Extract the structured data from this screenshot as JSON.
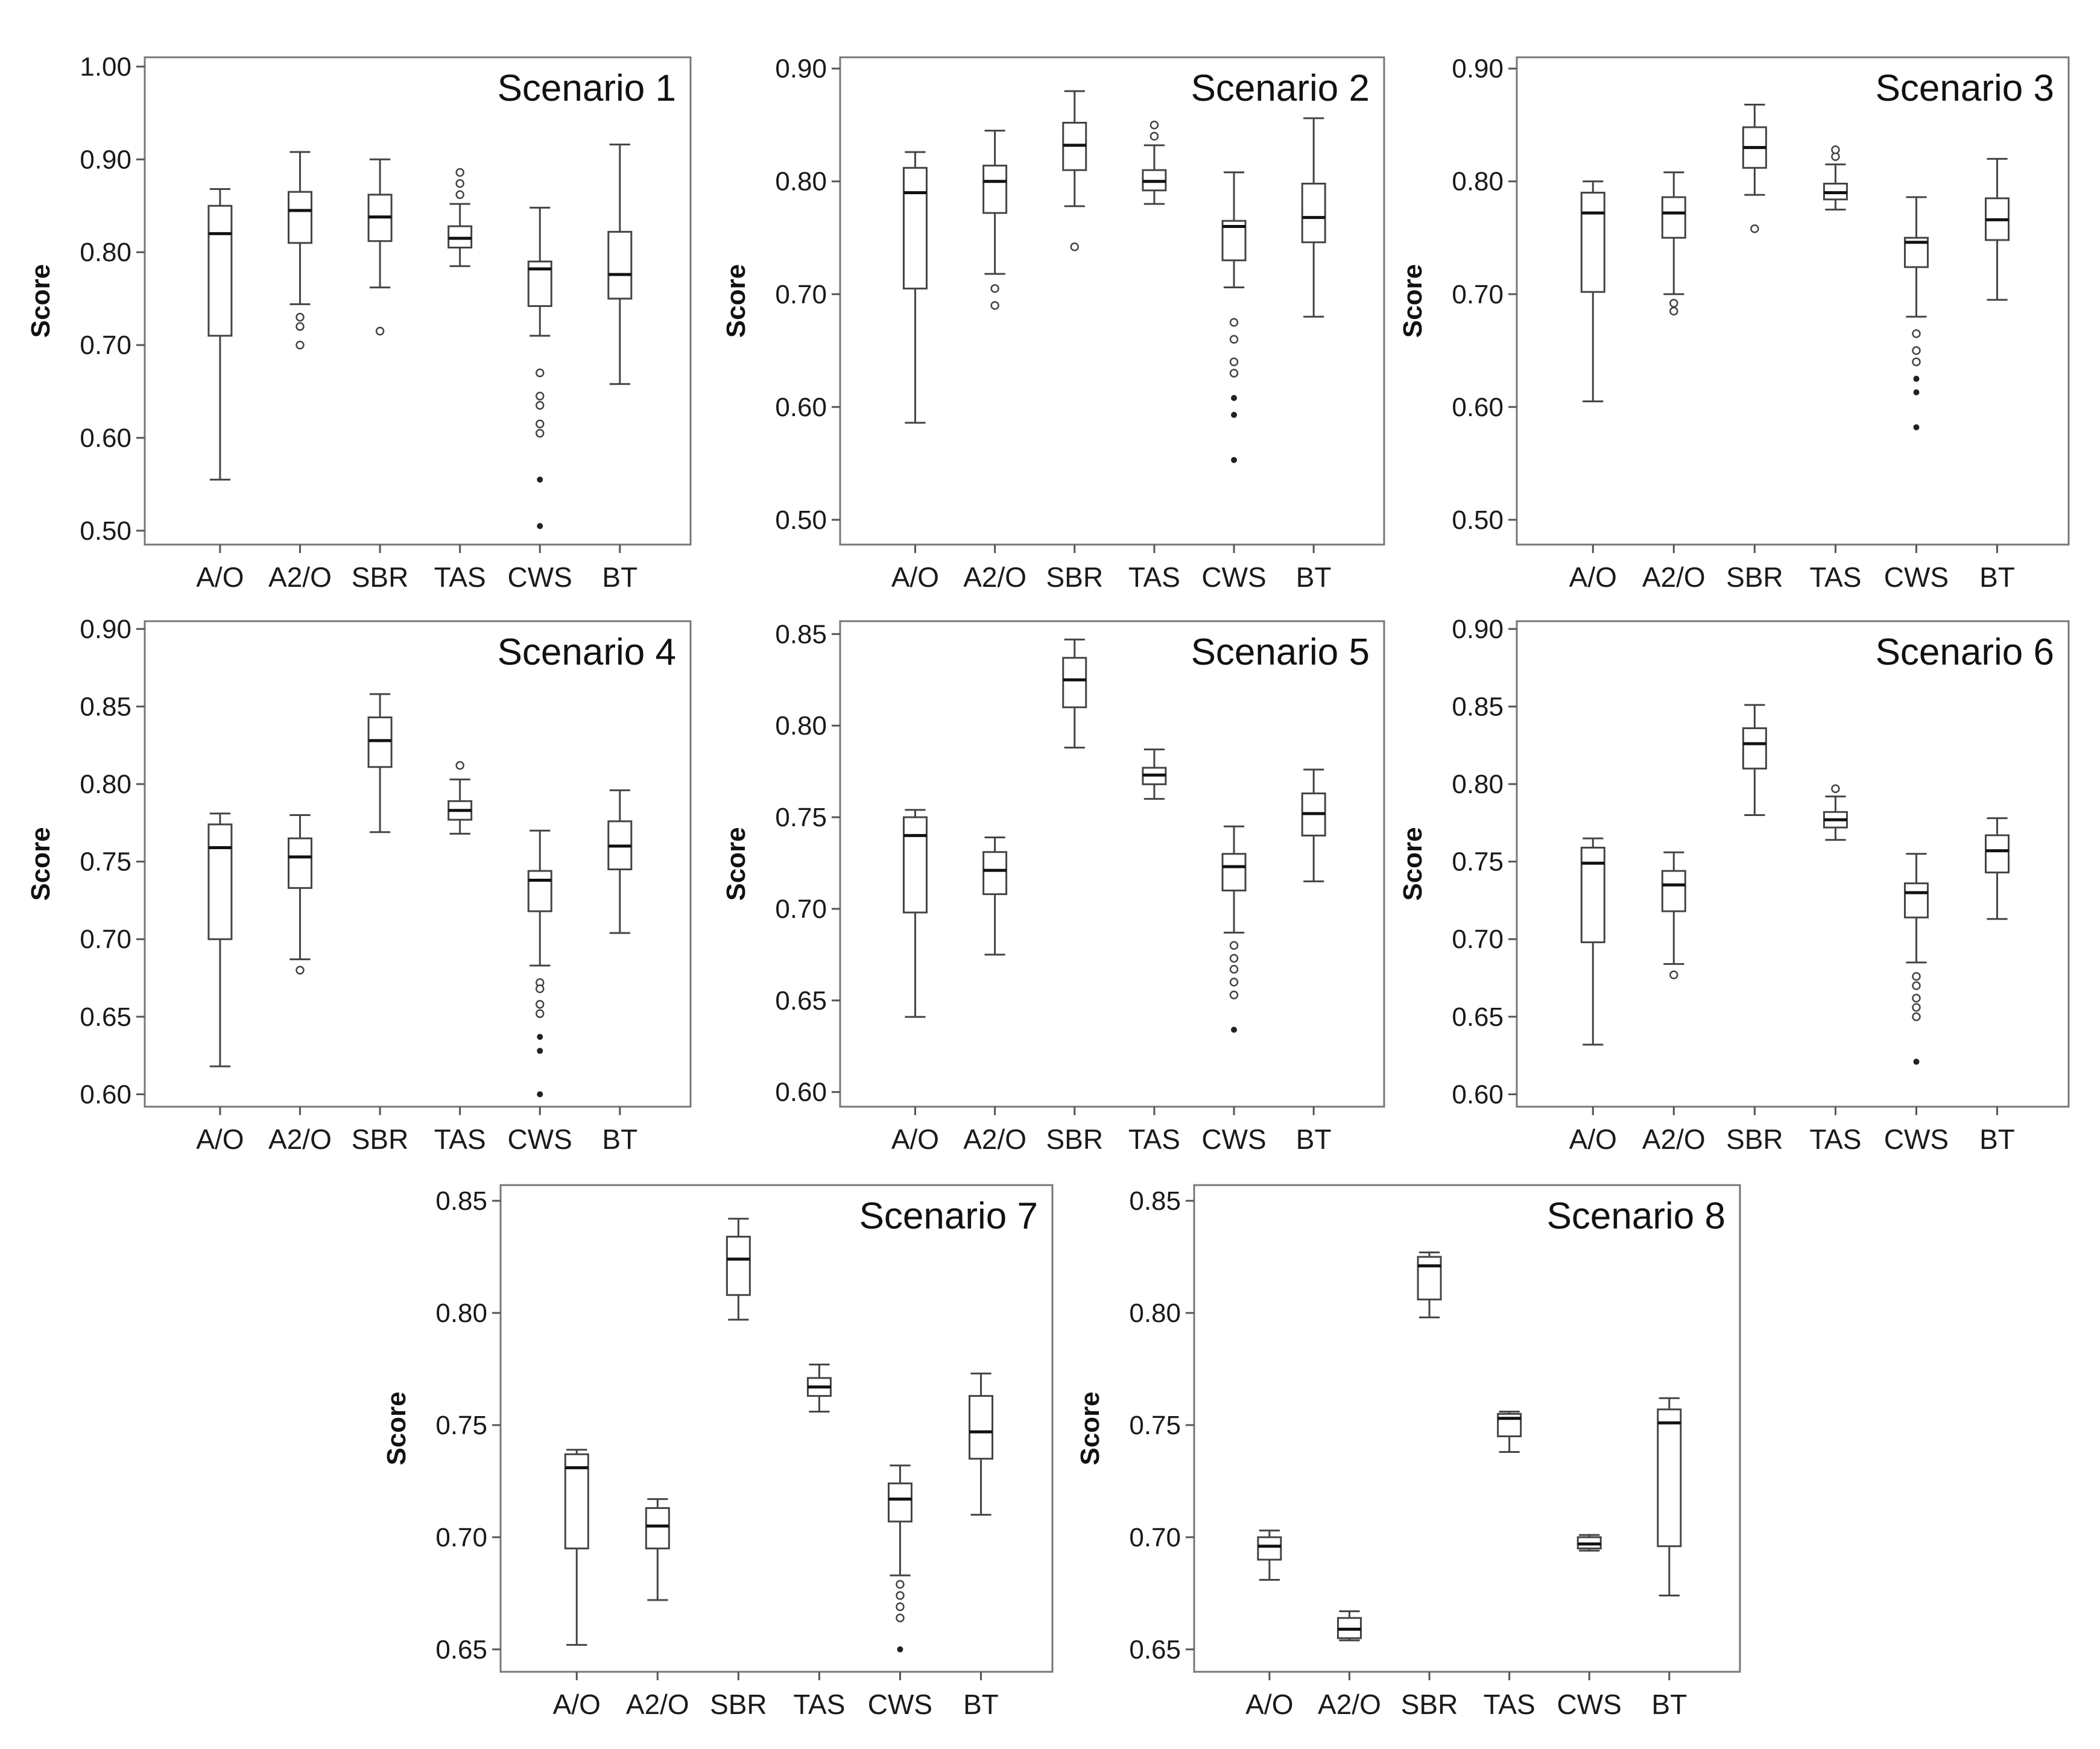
{
  "chart_data": [
    {
      "type": "box",
      "title": "Scenario 1",
      "ylabel": "Score",
      "categories": [
        "A/O",
        "A2/O",
        "SBR",
        "TAS",
        "CWS",
        "BT"
      ],
      "y_ticks": [
        "1.00",
        "0.90",
        "0.80",
        "0.70",
        "0.60",
        "0.50"
      ],
      "ylim": [
        0.485,
        1.01
      ],
      "boxes": [
        {
          "min": 0.555,
          "q1": 0.71,
          "median": 0.82,
          "q3": 0.85,
          "max": 0.868,
          "outliers": [],
          "extremes": []
        },
        {
          "min": 0.744,
          "q1": 0.81,
          "median": 0.845,
          "q3": 0.865,
          "max": 0.908,
          "outliers": [
            0.73,
            0.72,
            0.7
          ],
          "extremes": []
        },
        {
          "min": 0.762,
          "q1": 0.812,
          "median": 0.838,
          "q3": 0.862,
          "max": 0.9,
          "outliers": [
            0.715
          ],
          "extremes": []
        },
        {
          "min": 0.785,
          "q1": 0.805,
          "median": 0.815,
          "q3": 0.828,
          "max": 0.852,
          "outliers": [
            0.862,
            0.874,
            0.886
          ],
          "extremes": []
        },
        {
          "min": 0.71,
          "q1": 0.742,
          "median": 0.782,
          "q3": 0.79,
          "max": 0.848,
          "outliers": [
            0.67,
            0.645,
            0.635,
            0.615,
            0.605
          ],
          "extremes": [
            0.555,
            0.505
          ]
        },
        {
          "min": 0.658,
          "q1": 0.75,
          "median": 0.776,
          "q3": 0.822,
          "max": 0.916,
          "outliers": [],
          "extremes": []
        }
      ]
    },
    {
      "type": "box",
      "title": "Scenario 2",
      "ylabel": "Score",
      "categories": [
        "A/O",
        "A2/O",
        "SBR",
        "TAS",
        "CWS",
        "BT"
      ],
      "y_ticks": [
        "0.90",
        "0.80",
        "0.70",
        "0.60",
        "0.50"
      ],
      "ylim": [
        0.478,
        0.91
      ],
      "boxes": [
        {
          "min": 0.586,
          "q1": 0.705,
          "median": 0.79,
          "q3": 0.812,
          "max": 0.826,
          "outliers": [],
          "extremes": []
        },
        {
          "min": 0.718,
          "q1": 0.772,
          "median": 0.8,
          "q3": 0.814,
          "max": 0.845,
          "outliers": [
            0.705,
            0.69
          ],
          "extremes": []
        },
        {
          "min": 0.778,
          "q1": 0.81,
          "median": 0.832,
          "q3": 0.852,
          "max": 0.88,
          "outliers": [
            0.742
          ],
          "extremes": []
        },
        {
          "min": 0.78,
          "q1": 0.792,
          "median": 0.8,
          "q3": 0.81,
          "max": 0.832,
          "outliers": [
            0.84,
            0.85
          ],
          "extremes": []
        },
        {
          "min": 0.706,
          "q1": 0.73,
          "median": 0.76,
          "q3": 0.765,
          "max": 0.808,
          "outliers": [
            0.675,
            0.66,
            0.64,
            0.63
          ],
          "extremes": [
            0.608,
            0.593,
            0.553
          ]
        },
        {
          "min": 0.68,
          "q1": 0.746,
          "median": 0.768,
          "q3": 0.798,
          "max": 0.856,
          "outliers": [],
          "extremes": []
        }
      ]
    },
    {
      "type": "box",
      "title": "Scenario 3",
      "ylabel": "Score",
      "categories": [
        "A/O",
        "A2/O",
        "SBR",
        "TAS",
        "CWS",
        "BT"
      ],
      "y_ticks": [
        "0.90",
        "0.80",
        "0.70",
        "0.60",
        "0.50"
      ],
      "ylim": [
        0.478,
        0.91
      ],
      "boxes": [
        {
          "min": 0.605,
          "q1": 0.702,
          "median": 0.772,
          "q3": 0.79,
          "max": 0.8,
          "outliers": [],
          "extremes": []
        },
        {
          "min": 0.7,
          "q1": 0.75,
          "median": 0.772,
          "q3": 0.786,
          "max": 0.808,
          "outliers": [
            0.692,
            0.685
          ],
          "extremes": []
        },
        {
          "min": 0.788,
          "q1": 0.812,
          "median": 0.83,
          "q3": 0.848,
          "max": 0.868,
          "outliers": [
            0.758
          ],
          "extremes": []
        },
        {
          "min": 0.775,
          "q1": 0.784,
          "median": 0.79,
          "q3": 0.798,
          "max": 0.815,
          "outliers": [
            0.822,
            0.828
          ],
          "extremes": []
        },
        {
          "min": 0.68,
          "q1": 0.724,
          "median": 0.746,
          "q3": 0.75,
          "max": 0.786,
          "outliers": [
            0.665,
            0.65,
            0.64
          ],
          "extremes": [
            0.625,
            0.613,
            0.582
          ]
        },
        {
          "min": 0.695,
          "q1": 0.748,
          "median": 0.766,
          "q3": 0.785,
          "max": 0.82,
          "outliers": [],
          "extremes": []
        }
      ]
    },
    {
      "type": "box",
      "title": "Scenario 4",
      "ylabel": "Score",
      "categories": [
        "A/O",
        "A2/O",
        "SBR",
        "TAS",
        "CWS",
        "BT"
      ],
      "y_ticks": [
        "0.90",
        "0.85",
        "0.80",
        "0.75",
        "0.70",
        "0.65",
        "0.60"
      ],
      "ylim": [
        0.592,
        0.905
      ],
      "boxes": [
        {
          "min": 0.618,
          "q1": 0.7,
          "median": 0.759,
          "q3": 0.774,
          "max": 0.781,
          "outliers": [],
          "extremes": []
        },
        {
          "min": 0.687,
          "q1": 0.733,
          "median": 0.753,
          "q3": 0.765,
          "max": 0.78,
          "outliers": [
            0.68
          ],
          "extremes": []
        },
        {
          "min": 0.769,
          "q1": 0.811,
          "median": 0.828,
          "q3": 0.843,
          "max": 0.858,
          "outliers": [],
          "extremes": []
        },
        {
          "min": 0.768,
          "q1": 0.777,
          "median": 0.783,
          "q3": 0.789,
          "max": 0.803,
          "outliers": [
            0.812
          ],
          "extremes": []
        },
        {
          "min": 0.683,
          "q1": 0.718,
          "median": 0.738,
          "q3": 0.744,
          "max": 0.77,
          "outliers": [
            0.672,
            0.668,
            0.658,
            0.652
          ],
          "extremes": [
            0.637,
            0.628,
            0.6
          ]
        },
        {
          "min": 0.704,
          "q1": 0.745,
          "median": 0.76,
          "q3": 0.776,
          "max": 0.796,
          "outliers": [],
          "extremes": []
        }
      ]
    },
    {
      "type": "box",
      "title": "Scenario 5",
      "ylabel": "Score",
      "categories": [
        "A/O",
        "A2/O",
        "SBR",
        "TAS",
        "CWS",
        "BT"
      ],
      "y_ticks": [
        "0.85",
        "0.80",
        "0.75",
        "0.70",
        "0.65",
        "0.60"
      ],
      "ylim": [
        0.592,
        0.857
      ],
      "boxes": [
        {
          "min": 0.641,
          "q1": 0.698,
          "median": 0.74,
          "q3": 0.75,
          "max": 0.754,
          "outliers": [],
          "extremes": []
        },
        {
          "min": 0.675,
          "q1": 0.708,
          "median": 0.721,
          "q3": 0.731,
          "max": 0.739,
          "outliers": [],
          "extremes": []
        },
        {
          "min": 0.788,
          "q1": 0.81,
          "median": 0.825,
          "q3": 0.837,
          "max": 0.847,
          "outliers": [],
          "extremes": []
        },
        {
          "min": 0.76,
          "q1": 0.768,
          "median": 0.773,
          "q3": 0.777,
          "max": 0.787,
          "outliers": [],
          "extremes": []
        },
        {
          "min": 0.687,
          "q1": 0.71,
          "median": 0.723,
          "q3": 0.73,
          "max": 0.745,
          "outliers": [
            0.68,
            0.673,
            0.667,
            0.66,
            0.653
          ],
          "extremes": [
            0.634
          ]
        },
        {
          "min": 0.715,
          "q1": 0.74,
          "median": 0.752,
          "q3": 0.763,
          "max": 0.776,
          "outliers": [],
          "extremes": []
        }
      ]
    },
    {
      "type": "box",
      "title": "Scenario 6",
      "ylabel": "Score",
      "categories": [
        "A/O",
        "A2/O",
        "SBR",
        "TAS",
        "CWS",
        "BT"
      ],
      "y_ticks": [
        "0.90",
        "0.85",
        "0.80",
        "0.75",
        "0.70",
        "0.65",
        "0.60"
      ],
      "ylim": [
        0.592,
        0.905
      ],
      "boxes": [
        {
          "min": 0.632,
          "q1": 0.698,
          "median": 0.749,
          "q3": 0.759,
          "max": 0.765,
          "outliers": [],
          "extremes": []
        },
        {
          "min": 0.684,
          "q1": 0.718,
          "median": 0.735,
          "q3": 0.744,
          "max": 0.756,
          "outliers": [
            0.677
          ],
          "extremes": []
        },
        {
          "min": 0.78,
          "q1": 0.81,
          "median": 0.826,
          "q3": 0.836,
          "max": 0.851,
          "outliers": [],
          "extremes": []
        },
        {
          "min": 0.764,
          "q1": 0.772,
          "median": 0.777,
          "q3": 0.782,
          "max": 0.792,
          "outliers": [
            0.797
          ],
          "extremes": []
        },
        {
          "min": 0.685,
          "q1": 0.714,
          "median": 0.73,
          "q3": 0.736,
          "max": 0.755,
          "outliers": [
            0.676,
            0.67,
            0.662,
            0.656,
            0.65
          ],
          "extremes": [
            0.621
          ]
        },
        {
          "min": 0.713,
          "q1": 0.743,
          "median": 0.757,
          "q3": 0.767,
          "max": 0.778,
          "outliers": [],
          "extremes": []
        }
      ]
    },
    {
      "type": "box",
      "title": "Scenario 7",
      "ylabel": "Score",
      "categories": [
        "A/O",
        "A2/O",
        "SBR",
        "TAS",
        "CWS",
        "BT"
      ],
      "y_ticks": [
        "0.85",
        "0.80",
        "0.75",
        "0.70",
        "0.65"
      ],
      "ylim": [
        0.64,
        0.857
      ],
      "boxes": [
        {
          "min": 0.652,
          "q1": 0.695,
          "median": 0.731,
          "q3": 0.737,
          "max": 0.739,
          "outliers": [],
          "extremes": []
        },
        {
          "min": 0.672,
          "q1": 0.695,
          "median": 0.705,
          "q3": 0.713,
          "max": 0.717,
          "outliers": [],
          "extremes": []
        },
        {
          "min": 0.797,
          "q1": 0.808,
          "median": 0.824,
          "q3": 0.834,
          "max": 0.842,
          "outliers": [],
          "extremes": []
        },
        {
          "min": 0.756,
          "q1": 0.763,
          "median": 0.767,
          "q3": 0.771,
          "max": 0.777,
          "outliers": [],
          "extremes": []
        },
        {
          "min": 0.683,
          "q1": 0.707,
          "median": 0.717,
          "q3": 0.724,
          "max": 0.732,
          "outliers": [
            0.679,
            0.674,
            0.669,
            0.664
          ],
          "extremes": [
            0.65
          ]
        },
        {
          "min": 0.71,
          "q1": 0.735,
          "median": 0.747,
          "q3": 0.763,
          "max": 0.773,
          "outliers": [],
          "extremes": []
        }
      ]
    },
    {
      "type": "box",
      "title": "Scenario 8",
      "ylabel": "Score",
      "categories": [
        "A/O",
        "A2/O",
        "SBR",
        "TAS",
        "CWS",
        "BT"
      ],
      "y_ticks": [
        "0.85",
        "0.80",
        "0.75",
        "0.70",
        "0.65"
      ],
      "ylim": [
        0.64,
        0.857
      ],
      "boxes": [
        {
          "min": 0.681,
          "q1": 0.69,
          "median": 0.696,
          "q3": 0.7,
          "max": 0.703,
          "outliers": [],
          "extremes": []
        },
        {
          "min": 0.654,
          "q1": 0.655,
          "median": 0.659,
          "q3": 0.664,
          "max": 0.667,
          "outliers": [],
          "extremes": []
        },
        {
          "min": 0.798,
          "q1": 0.806,
          "median": 0.821,
          "q3": 0.825,
          "max": 0.827,
          "outliers": [],
          "extremes": []
        },
        {
          "min": 0.738,
          "q1": 0.745,
          "median": 0.753,
          "q3": 0.755,
          "max": 0.756,
          "outliers": [],
          "extremes": []
        },
        {
          "min": 0.694,
          "q1": 0.695,
          "median": 0.697,
          "q3": 0.7,
          "max": 0.701,
          "outliers": [],
          "extremes": []
        },
        {
          "min": 0.674,
          "q1": 0.696,
          "median": 0.751,
          "q3": 0.757,
          "max": 0.762,
          "outliers": [],
          "extremes": []
        }
      ]
    }
  ]
}
